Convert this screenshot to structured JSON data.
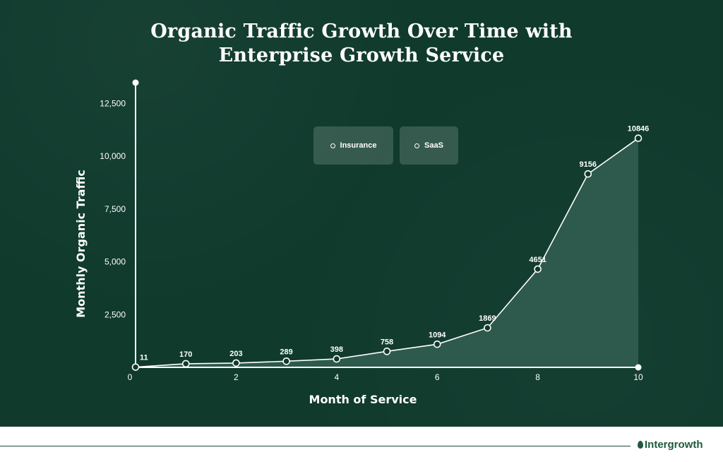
{
  "chart_data": {
    "type": "area",
    "title_line1": "Organic Traffic Growth Over Time with",
    "title_line2": "Enterprise Growth Service",
    "xlabel": "Month of Service",
    "ylabel": "Monthly Organic Traffic",
    "x": [
      0,
      1,
      2,
      3,
      4,
      5,
      6,
      7,
      8,
      9,
      10
    ],
    "values": [
      11,
      170,
      203,
      289,
      398,
      758,
      1094,
      1869,
      4651,
      9156,
      10846
    ],
    "data_labels": [
      "11",
      "170",
      "203",
      "289",
      "398",
      "758",
      "1094",
      "1869",
      "4651",
      "9156",
      "10846"
    ],
    "x_ticks": [
      0,
      2,
      4,
      6,
      8,
      10
    ],
    "x_tick_labels": [
      "0",
      "2",
      "4",
      "6",
      "8",
      "10"
    ],
    "y_ticks": [
      2500,
      5000,
      7500,
      10000,
      12500
    ],
    "y_tick_labels": [
      "2,500",
      "5,000",
      "7,500",
      "10,000",
      "12,500"
    ],
    "legend": [
      "Insurance",
      "SaaS"
    ],
    "colors": {
      "background": "#0f3a2c",
      "line": "#ffffff",
      "fill": "#2d5a4c"
    }
  },
  "brand": {
    "name": "Intergrowth"
  }
}
